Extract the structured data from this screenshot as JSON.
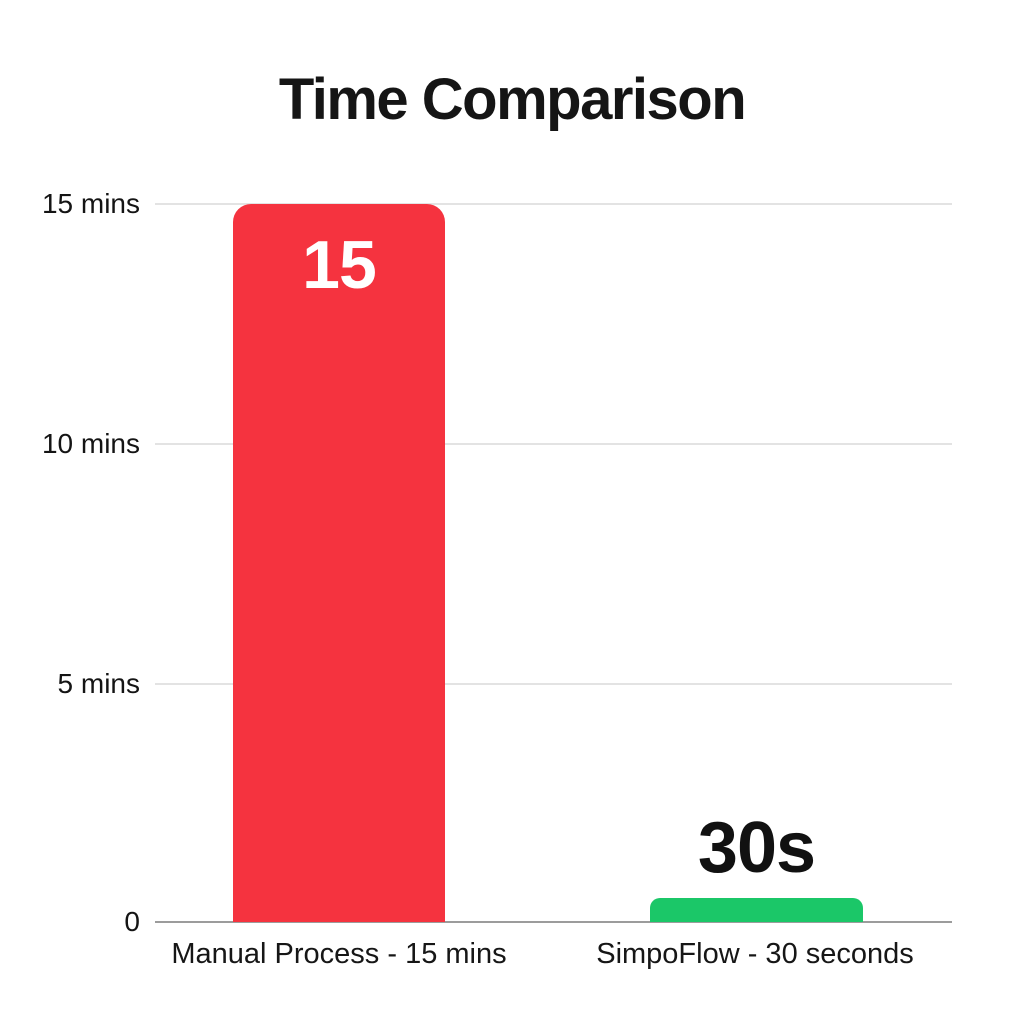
{
  "chart_data": {
    "type": "bar",
    "title": "Time Comparison",
    "categories": [
      "Manual Process - 15 mins",
      "SimpoFlow - 30 seconds"
    ],
    "values": [
      15,
      0.5
    ],
    "value_labels": [
      "15",
      "30s"
    ],
    "value_label_positions": [
      "inside-top",
      "above"
    ],
    "units": "minutes",
    "ytick_labels": [
      "15 mins",
      "10 mins",
      "5 mins",
      "0"
    ],
    "ylim": [
      0,
      15
    ],
    "grid": true,
    "legend": false,
    "xlabel": "",
    "ylabel": "",
    "colors": [
      "#f5333f",
      "#1bc768"
    ],
    "gridline_color": "#e3e3e3",
    "baseline_color": "#9c9c9c",
    "title_color": "#151515",
    "inside_label_color": "#ffffff",
    "above_label_color": "#111111"
  }
}
